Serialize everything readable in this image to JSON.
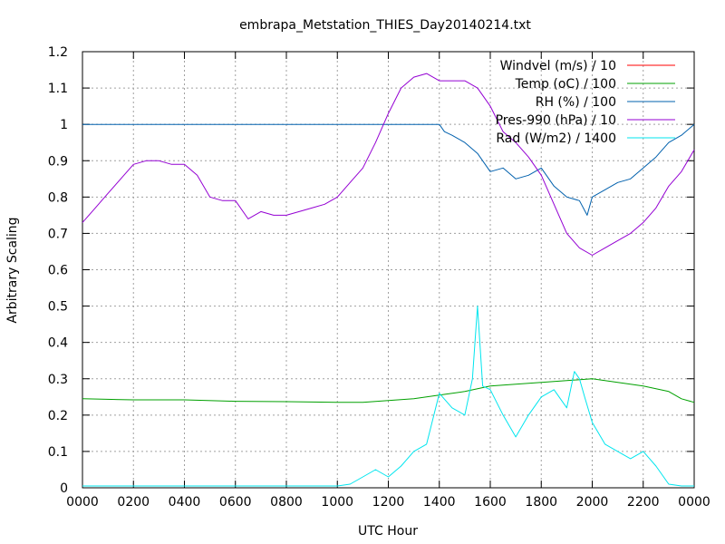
{
  "chart_data": {
    "type": "line",
    "title": "embrapa_Metstation_THIES_Day20140214.txt",
    "xlabel": "UTC Hour",
    "ylabel": "Arbitrary Scaling",
    "xlim": [
      0,
      24
    ],
    "ylim": [
      0,
      1.2
    ],
    "grid": true,
    "legend_position": "top-right",
    "x_ticks": [
      {
        "value": 0,
        "label": "0000"
      },
      {
        "value": 2,
        "label": "0200"
      },
      {
        "value": 4,
        "label": "0400"
      },
      {
        "value": 6,
        "label": "0600"
      },
      {
        "value": 8,
        "label": "0800"
      },
      {
        "value": 10,
        "label": "1000"
      },
      {
        "value": 12,
        "label": "1200"
      },
      {
        "value": 14,
        "label": "1400"
      },
      {
        "value": 16,
        "label": "1600"
      },
      {
        "value": 18,
        "label": "1800"
      },
      {
        "value": 20,
        "label": "2000"
      },
      {
        "value": 22,
        "label": "2200"
      },
      {
        "value": 24,
        "label": "0000"
      }
    ],
    "y_ticks": [
      {
        "value": 0,
        "label": "0"
      },
      {
        "value": 0.1,
        "label": "0.1"
      },
      {
        "value": 0.2,
        "label": "0.2"
      },
      {
        "value": 0.3,
        "label": "0.3"
      },
      {
        "value": 0.4,
        "label": "0.4"
      },
      {
        "value": 0.5,
        "label": "0.5"
      },
      {
        "value": 0.6,
        "label": "0.6"
      },
      {
        "value": 0.7,
        "label": "0.7"
      },
      {
        "value": 0.8,
        "label": "0.8"
      },
      {
        "value": 0.9,
        "label": "0.9"
      },
      {
        "value": 1.0,
        "label": "1"
      },
      {
        "value": 1.1,
        "label": "1.1"
      },
      {
        "value": 1.2,
        "label": "1.2"
      }
    ],
    "series": [
      {
        "name": "Windvel (m/s) / 10",
        "color": "#ff0000",
        "x": [],
        "y": []
      },
      {
        "name": "Temp (oC) / 100",
        "color": "#00a000",
        "x": [
          0,
          2,
          4,
          6,
          8,
          10,
          11,
          12,
          13,
          14,
          15,
          16,
          17,
          18,
          19,
          20,
          21,
          22,
          23,
          23.5,
          24
        ],
        "y": [
          0.245,
          0.242,
          0.242,
          0.238,
          0.237,
          0.235,
          0.235,
          0.24,
          0.245,
          0.255,
          0.265,
          0.28,
          0.285,
          0.29,
          0.295,
          0.3,
          0.29,
          0.28,
          0.265,
          0.245,
          0.235
        ]
      },
      {
        "name": "RH (%) / 100",
        "color": "#0060ad",
        "x": [
          0,
          14,
          14.2,
          14.5,
          15,
          15.5,
          16,
          16.5,
          17,
          17.5,
          18,
          18.5,
          19,
          19.5,
          19.8,
          20,
          20.5,
          21,
          21.5,
          22,
          22.5,
          23,
          23.5,
          24
        ],
        "y": [
          1.0,
          1.0,
          0.98,
          0.97,
          0.95,
          0.92,
          0.87,
          0.88,
          0.85,
          0.86,
          0.88,
          0.83,
          0.8,
          0.79,
          0.75,
          0.8,
          0.82,
          0.84,
          0.85,
          0.88,
          0.91,
          0.95,
          0.97,
          1.0
        ]
      },
      {
        "name": "Pres-990 (hPa) / 10",
        "color": "#9400d3",
        "x": [
          0,
          0.5,
          1,
          1.5,
          2,
          2.5,
          3,
          3.5,
          4,
          4.5,
          5,
          5.5,
          6,
          6.5,
          7,
          7.5,
          8,
          8.5,
          9,
          9.5,
          10,
          10.5,
          11,
          11.5,
          12,
          12.5,
          13,
          13.5,
          14,
          14.5,
          15,
          15.5,
          16,
          16.5,
          17,
          17.5,
          18,
          18.5,
          19,
          19.5,
          20,
          20.5,
          21,
          21.5,
          22,
          22.5,
          23,
          23.5,
          24
        ],
        "y": [
          0.73,
          0.77,
          0.81,
          0.85,
          0.89,
          0.9,
          0.9,
          0.89,
          0.89,
          0.86,
          0.8,
          0.79,
          0.79,
          0.74,
          0.76,
          0.75,
          0.75,
          0.76,
          0.77,
          0.78,
          0.8,
          0.84,
          0.88,
          0.95,
          1.03,
          1.1,
          1.13,
          1.14,
          1.12,
          1.12,
          1.12,
          1.1,
          1.05,
          0.98,
          0.95,
          0.91,
          0.86,
          0.78,
          0.7,
          0.66,
          0.64,
          0.66,
          0.68,
          0.7,
          0.73,
          0.77,
          0.83,
          0.87,
          0.93
        ]
      },
      {
        "name": "Rad (W/m2) / 1400",
        "color": "#00e5ee",
        "x": [
          0,
          10,
          10.5,
          11,
          11.5,
          12,
          12.5,
          13,
          13.5,
          14,
          14.5,
          15,
          15.3,
          15.5,
          15.7,
          16,
          16.5,
          17,
          17.5,
          18,
          18.5,
          19,
          19.3,
          19.5,
          19.7,
          20,
          20.5,
          21,
          21.5,
          22,
          22.5,
          23,
          23.5,
          24
        ],
        "y": [
          0.005,
          0.005,
          0.01,
          0.03,
          0.05,
          0.03,
          0.06,
          0.1,
          0.12,
          0.26,
          0.22,
          0.2,
          0.3,
          0.5,
          0.28,
          0.27,
          0.2,
          0.14,
          0.2,
          0.25,
          0.27,
          0.22,
          0.32,
          0.3,
          0.25,
          0.18,
          0.12,
          0.1,
          0.08,
          0.1,
          0.06,
          0.01,
          0.005,
          0.005
        ]
      }
    ]
  }
}
